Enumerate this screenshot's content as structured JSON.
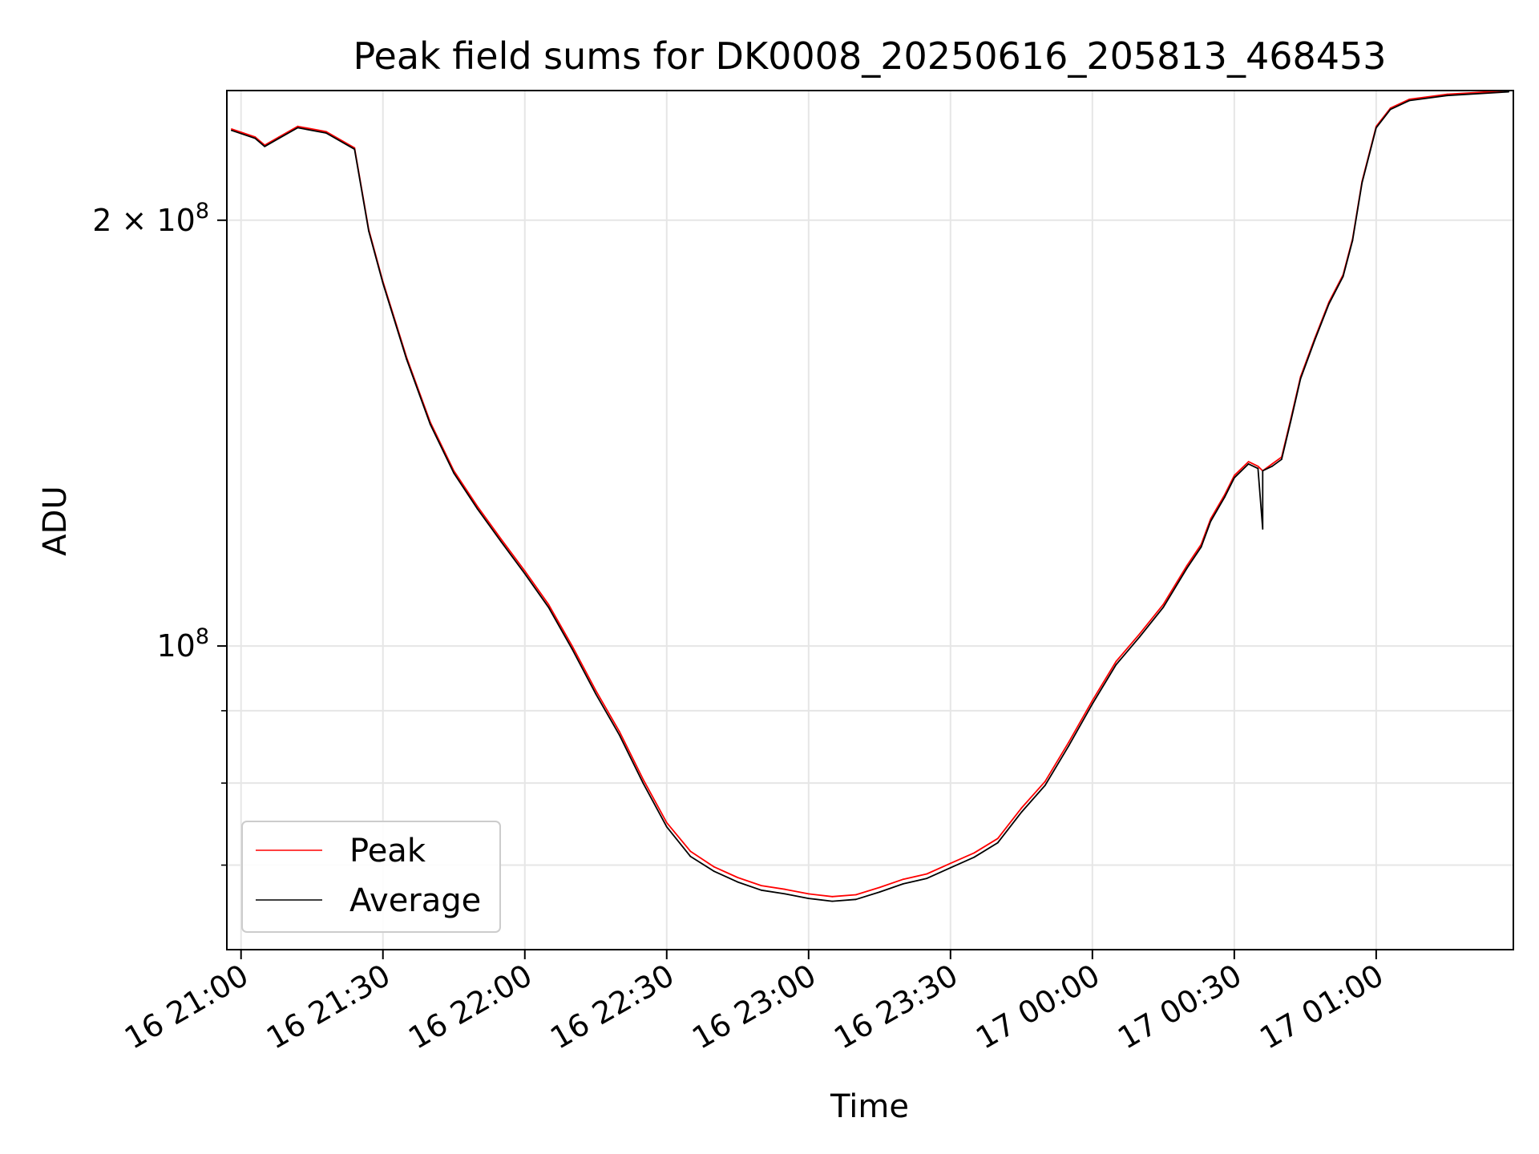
{
  "chart_data": {
    "type": "line",
    "title": "Peak field sums for DK0008_20250616_205813_468453",
    "xlabel": "Time",
    "ylabel": "ADU",
    "yscale": "log",
    "grid": true,
    "legend_position": "lower-left",
    "xlim": [
      "2025-06-16 20:57",
      "2025-06-17 01:29"
    ],
    "ylim": [
      61000000,
      247000000
    ],
    "x_ticks": [
      {
        "t": "2025-06-16 21:00",
        "label": "16 21:00"
      },
      {
        "t": "2025-06-16 21:30",
        "label": "16 21:30"
      },
      {
        "t": "2025-06-16 22:00",
        "label": "16 22:00"
      },
      {
        "t": "2025-06-16 22:30",
        "label": "16 22:30"
      },
      {
        "t": "2025-06-16 23:00",
        "label": "16 23:00"
      },
      {
        "t": "2025-06-16 23:30",
        "label": "16 23:30"
      },
      {
        "t": "2025-06-17 00:00",
        "label": "17 00:00"
      },
      {
        "t": "2025-06-17 00:30",
        "label": "17 00:30"
      },
      {
        "t": "2025-06-17 01:00",
        "label": "17 01:00"
      }
    ],
    "y_major_ticks": [
      {
        "value": 100000000,
        "base": "10",
        "exp": "8"
      },
      {
        "value": 200000000,
        "base": "2 × 10",
        "exp": "8"
      }
    ],
    "y_minor_ticks": [
      60000000,
      70000000,
      80000000,
      90000000
    ],
    "series": [
      {
        "name": "Peak",
        "color": "#ff0000",
        "points": [
          [
            "2025-06-16 20:58",
            232000000
          ],
          [
            "2025-06-16 21:03",
            229000000
          ],
          [
            "2025-06-16 21:05",
            226000000
          ],
          [
            "2025-06-16 21:08",
            229000000
          ],
          [
            "2025-06-16 21:12",
            233000000
          ],
          [
            "2025-06-16 21:18",
            231000000
          ],
          [
            "2025-06-16 21:24",
            225000000
          ],
          [
            "2025-06-16 21:27",
            197000000
          ],
          [
            "2025-06-16 21:30",
            181000000
          ],
          [
            "2025-06-16 21:35",
            160000000
          ],
          [
            "2025-06-16 21:40",
            144000000
          ],
          [
            "2025-06-16 21:45",
            133000000
          ],
          [
            "2025-06-16 21:50",
            125500000
          ],
          [
            "2025-06-16 21:55",
            119000000
          ],
          [
            "2025-06-16 22:00",
            113000000
          ],
          [
            "2025-06-16 22:05",
            107000000
          ],
          [
            "2025-06-16 22:10",
            100000000
          ],
          [
            "2025-06-16 22:15",
            93000000
          ],
          [
            "2025-06-16 22:20",
            87000000
          ],
          [
            "2025-06-16 22:25",
            80500000
          ],
          [
            "2025-06-16 22:30",
            75000000
          ],
          [
            "2025-06-16 22:35",
            71600000
          ],
          [
            "2025-06-16 22:40",
            69800000
          ],
          [
            "2025-06-16 22:45",
            68600000
          ],
          [
            "2025-06-16 22:50",
            67700000
          ],
          [
            "2025-06-16 22:55",
            67300000
          ],
          [
            "2025-06-16 23:00",
            66800000
          ],
          [
            "2025-06-16 23:05",
            66500000
          ],
          [
            "2025-06-16 23:10",
            66700000
          ],
          [
            "2025-06-16 23:15",
            67500000
          ],
          [
            "2025-06-16 23:20",
            68400000
          ],
          [
            "2025-06-16 23:25",
            69000000
          ],
          [
            "2025-06-16 23:30",
            70200000
          ],
          [
            "2025-06-16 23:35",
            71400000
          ],
          [
            "2025-06-16 23:40",
            73100000
          ],
          [
            "2025-06-16 23:45",
            76800000
          ],
          [
            "2025-06-16 23:50",
            80200000
          ],
          [
            "2025-06-16 23:55",
            85500000
          ],
          [
            "2025-06-17 00:00",
            91500000
          ],
          [
            "2025-06-17 00:05",
            97500000
          ],
          [
            "2025-06-17 00:10",
            102000000
          ],
          [
            "2025-06-17 00:15",
            107000000
          ],
          [
            "2025-06-17 00:20",
            114000000
          ],
          [
            "2025-06-17 00:23",
            118000000
          ],
          [
            "2025-06-17 00:25",
            123000000
          ],
          [
            "2025-06-17 00:28",
            128000000
          ],
          [
            "2025-06-17 00:30",
            132000000
          ],
          [
            "2025-06-17 00:33",
            135000000
          ],
          [
            "2025-06-17 00:35",
            134000000
          ],
          [
            "2025-06-17 00:36",
            133000000
          ],
          [
            "2025-06-17 00:38",
            134500000
          ],
          [
            "2025-06-17 00:40",
            136000000
          ],
          [
            "2025-06-17 00:42",
            145000000
          ],
          [
            "2025-06-17 00:44",
            155000000
          ],
          [
            "2025-06-17 00:47",
            165000000
          ],
          [
            "2025-06-17 00:50",
            175000000
          ],
          [
            "2025-06-17 00:53",
            183000000
          ],
          [
            "2025-06-17 00:55",
            194000000
          ],
          [
            "2025-06-17 00:57",
            213000000
          ],
          [
            "2025-06-17 01:00",
            233000000
          ],
          [
            "2025-06-17 01:03",
            240000000
          ],
          [
            "2025-06-17 01:07",
            243500000
          ],
          [
            "2025-06-17 01:15",
            245500000
          ],
          [
            "2025-06-17 01:28",
            247000000
          ]
        ]
      },
      {
        "name": "Average",
        "color": "#000000",
        "points": [
          [
            "2025-06-16 20:58",
            231500000
          ],
          [
            "2025-06-16 21:03",
            228500000
          ],
          [
            "2025-06-16 21:05",
            225500000
          ],
          [
            "2025-06-16 21:08",
            228500000
          ],
          [
            "2025-06-16 21:12",
            232500000
          ],
          [
            "2025-06-16 21:18",
            230500000
          ],
          [
            "2025-06-16 21:24",
            224500000
          ],
          [
            "2025-06-16 21:27",
            196500000
          ],
          [
            "2025-06-16 21:30",
            180500000
          ],
          [
            "2025-06-16 21:35",
            159500000
          ],
          [
            "2025-06-16 21:40",
            143500000
          ],
          [
            "2025-06-16 21:45",
            132500000
          ],
          [
            "2025-06-16 21:50",
            125000000
          ],
          [
            "2025-06-16 21:55",
            118500000
          ],
          [
            "2025-06-16 22:00",
            112500000
          ],
          [
            "2025-06-16 22:05",
            106500000
          ],
          [
            "2025-06-16 22:10",
            99500000
          ],
          [
            "2025-06-16 22:15",
            92500000
          ],
          [
            "2025-06-16 22:20",
            86500000
          ],
          [
            "2025-06-16 22:25",
            80000000
          ],
          [
            "2025-06-16 22:30",
            74500000
          ],
          [
            "2025-06-16 22:35",
            71000000
          ],
          [
            "2025-06-16 22:40",
            69300000
          ],
          [
            "2025-06-16 22:45",
            68100000
          ],
          [
            "2025-06-16 22:50",
            67200000
          ],
          [
            "2025-06-16 22:55",
            66800000
          ],
          [
            "2025-06-16 23:00",
            66300000
          ],
          [
            "2025-06-16 23:05",
            66000000
          ],
          [
            "2025-06-16 23:10",
            66200000
          ],
          [
            "2025-06-16 23:15",
            67000000
          ],
          [
            "2025-06-16 23:20",
            67900000
          ],
          [
            "2025-06-16 23:25",
            68500000
          ],
          [
            "2025-06-16 23:30",
            69700000
          ],
          [
            "2025-06-16 23:35",
            70900000
          ],
          [
            "2025-06-16 23:40",
            72600000
          ],
          [
            "2025-06-16 23:45",
            76300000
          ],
          [
            "2025-06-16 23:50",
            79700000
          ],
          [
            "2025-06-16 23:55",
            85000000
          ],
          [
            "2025-06-17 00:00",
            91000000
          ],
          [
            "2025-06-17 00:05",
            97000000
          ],
          [
            "2025-06-17 00:10",
            101500000
          ],
          [
            "2025-06-17 00:15",
            106500000
          ],
          [
            "2025-06-17 00:20",
            113500000
          ],
          [
            "2025-06-17 00:23",
            117500000
          ],
          [
            "2025-06-17 00:25",
            122500000
          ],
          [
            "2025-06-17 00:28",
            127500000
          ],
          [
            "2025-06-17 00:30",
            131500000
          ],
          [
            "2025-06-17 00:33",
            134500000
          ],
          [
            "2025-06-17 00:35",
            133500000
          ],
          [
            "2025-06-17 00:36",
            121000000
          ],
          [
            "2025-06-17 00:36",
            133000000
          ],
          [
            "2025-06-17 00:38",
            134000000
          ],
          [
            "2025-06-17 00:40",
            135500000
          ],
          [
            "2025-06-17 00:42",
            144500000
          ],
          [
            "2025-06-17 00:44",
            154500000
          ],
          [
            "2025-06-17 00:47",
            164500000
          ],
          [
            "2025-06-17 00:50",
            174500000
          ],
          [
            "2025-06-17 00:53",
            182500000
          ],
          [
            "2025-06-17 00:55",
            193500000
          ],
          [
            "2025-06-17 00:57",
            212500000
          ],
          [
            "2025-06-17 01:00",
            232500000
          ],
          [
            "2025-06-17 01:03",
            239500000
          ],
          [
            "2025-06-17 01:07",
            243000000
          ],
          [
            "2025-06-17 01:15",
            245000000
          ],
          [
            "2025-06-17 01:28",
            246500000
          ]
        ]
      }
    ]
  }
}
